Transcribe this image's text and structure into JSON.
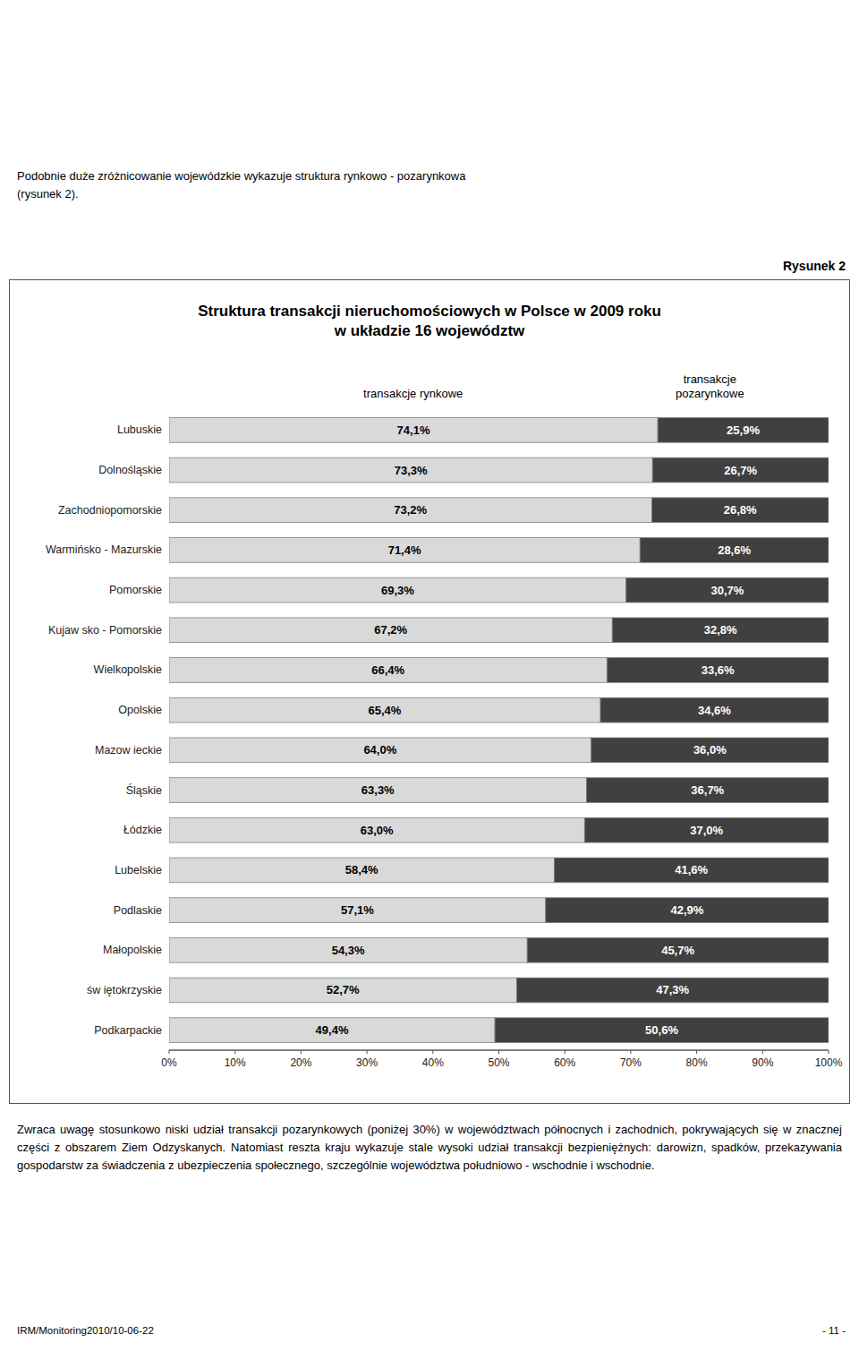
{
  "chart_data": {
    "type": "bar",
    "orientation": "horizontal",
    "stacked": true,
    "data_labels": true,
    "grid": false,
    "legend": "top",
    "title": "Struktura transakcji nieruchomościowych w Polsce w 2009 roku",
    "subtitle": "w układzie 16 województw",
    "categories": [
      "Lubuskie",
      "Dolnośląskie",
      "Zachodniopomorskie",
      "Warmińsko - Mazurskie",
      "Pomorskie",
      "Kujaw sko - Pomorskie",
      "Wielkopolskie",
      "Opolskie",
      "Mazow ieckie",
      "Śląskie",
      "Łódzkie",
      "Lubelskie",
      "Podlaskie",
      "Małopolskie",
      "św iętokrzyskie",
      "Podkarpackie"
    ],
    "series": [
      {
        "name": "transakcje rynkowe",
        "color": "#d9d9d9",
        "values": [
          74.1,
          73.3,
          73.2,
          71.4,
          69.3,
          67.2,
          66.4,
          65.4,
          64.0,
          63.3,
          63.0,
          58.4,
          57.1,
          54.3,
          52.7,
          49.4
        ],
        "value_labels": [
          "74,1%",
          "73,3%",
          "73,2%",
          "71,4%",
          "69,3%",
          "67,2%",
          "66,4%",
          "65,4%",
          "64,0%",
          "63,3%",
          "63,0%",
          "58,4%",
          "57,1%",
          "54,3%",
          "52,7%",
          "49,4%"
        ]
      },
      {
        "name": "transakcje\npozarynkowe",
        "color": "#404040",
        "values": [
          25.9,
          26.7,
          26.8,
          28.6,
          30.7,
          32.8,
          33.6,
          34.6,
          36.0,
          36.7,
          37.0,
          41.6,
          42.9,
          45.7,
          47.3,
          50.6
        ],
        "value_labels": [
          "25,9%",
          "26,7%",
          "26,8%",
          "28,6%",
          "30,7%",
          "32,8%",
          "33,6%",
          "34,6%",
          "36,0%",
          "36,7%",
          "37,0%",
          "41,6%",
          "42,9%",
          "45,7%",
          "47,3%",
          "50,6%"
        ]
      }
    ],
    "xlim": [
      0,
      100
    ],
    "xticks": [
      {
        "value": 0,
        "label": "0%"
      },
      {
        "value": 10,
        "label": "10%"
      },
      {
        "value": 20,
        "label": "20%"
      },
      {
        "value": 30,
        "label": "30%"
      },
      {
        "value": 40,
        "label": "40%"
      },
      {
        "value": 50,
        "label": "50%"
      },
      {
        "value": 60,
        "label": "60%"
      },
      {
        "value": 70,
        "label": "70%"
      },
      {
        "value": 80,
        "label": "80%"
      },
      {
        "value": 90,
        "label": "90%"
      },
      {
        "value": 100,
        "label": "100%"
      }
    ],
    "annotations": [
      "Podobnie duże zróżnicowanie wojewódzkie wykazuje struktura rynkowo - pozarynkowa",
      "(rysunek 2).",
      "Rysunek 2",
      "Zwraca uwagę stosunkowo niski udział transakcji pozarynkowych (poniżej 30%) w województwach północnych i zachodnich, pokrywających się w znacznej części z obszarem Ziem Odzyskanych. Natomiast reszta kraju wykazuje stale wysoki udział transakcji bezpieniężnych: darowizn, spadków, przekazywania gospodarstw za świadczenia z ubezpieczenia społecznego, szczególnie województwa południowo - wschodnie i wschodnie.",
      "IRM/Monitoring2010/10-06-22",
      "- 11 -"
    ]
  }
}
